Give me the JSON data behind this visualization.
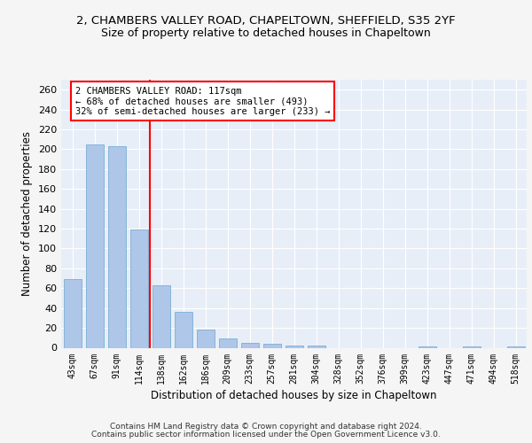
{
  "title1": "2, CHAMBERS VALLEY ROAD, CHAPELTOWN, SHEFFIELD, S35 2YF",
  "title2": "Size of property relative to detached houses in Chapeltown",
  "xlabel": "Distribution of detached houses by size in Chapeltown",
  "ylabel": "Number of detached properties",
  "categories": [
    "43sqm",
    "67sqm",
    "91sqm",
    "114sqm",
    "138sqm",
    "162sqm",
    "186sqm",
    "209sqm",
    "233sqm",
    "257sqm",
    "281sqm",
    "304sqm",
    "328sqm",
    "352sqm",
    "376sqm",
    "399sqm",
    "423sqm",
    "447sqm",
    "471sqm",
    "494sqm",
    "518sqm"
  ],
  "values": [
    69,
    205,
    203,
    119,
    63,
    36,
    18,
    9,
    5,
    4,
    2,
    2,
    0,
    0,
    0,
    0,
    1,
    0,
    1,
    0,
    1
  ],
  "bar_color": "#aec6e8",
  "bar_edgecolor": "#7aaed6",
  "vline_x": 3.5,
  "vline_color": "red",
  "annotation_line1": "2 CHAMBERS VALLEY ROAD: 117sqm",
  "annotation_line2": "← 68% of detached houses are smaller (493)",
  "annotation_line3": "32% of semi-detached houses are larger (233) →",
  "annotation_box_edgecolor": "red",
  "ylim": [
    0,
    270
  ],
  "yticks": [
    0,
    20,
    40,
    60,
    80,
    100,
    120,
    140,
    160,
    180,
    200,
    220,
    240,
    260
  ],
  "footer_text1": "Contains HM Land Registry data © Crown copyright and database right 2024.",
  "footer_text2": "Contains public sector information licensed under the Open Government Licence v3.0.",
  "bg_color": "#e8eef8",
  "grid_color": "#ffffff",
  "fig_bg_color": "#f5f5f5"
}
